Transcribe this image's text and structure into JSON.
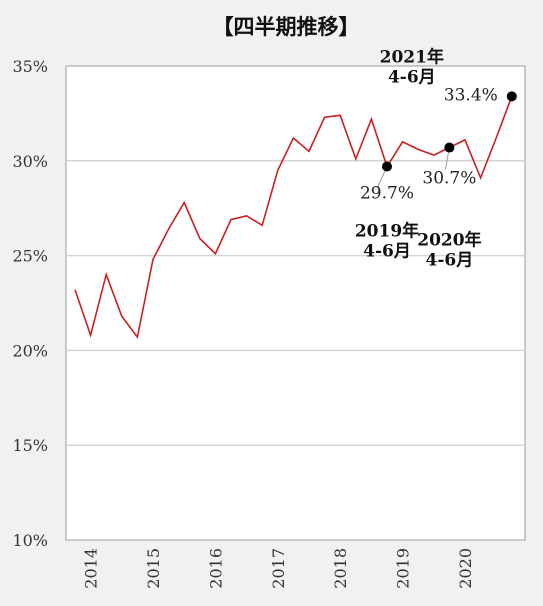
{
  "chart_data": {
    "type": "line",
    "title": "【四半期推移】",
    "xlabel": "",
    "ylabel": "",
    "ylim": [
      10,
      35
    ],
    "yticks": [
      "10%",
      "15%",
      "20%",
      "25%",
      "30%",
      "35%"
    ],
    "ytick_values": [
      10,
      15,
      20,
      25,
      30,
      35
    ],
    "xticks": [
      "2014",
      "2015",
      "2016",
      "2017",
      "2018",
      "2019",
      "2020"
    ],
    "grid": true,
    "line_color": "#cc1f1f",
    "series": [
      {
        "values": [
          23.2,
          20.8,
          24.0,
          21.8,
          20.7,
          24.8,
          26.4,
          27.8,
          25.9,
          25.1,
          26.9,
          27.1,
          26.6,
          29.5,
          31.2,
          30.5,
          32.3,
          32.4,
          30.1,
          32.2,
          29.7,
          31.0,
          30.6,
          30.3,
          30.7,
          31.1,
          29.1,
          31.2,
          33.4
        ]
      }
    ],
    "annotations": [
      {
        "index": 20,
        "value_label": "29.7%",
        "label": "2019年\n4-6月"
      },
      {
        "index": 24,
        "value_label": "30.7%",
        "label": "2020年\n4-6月"
      },
      {
        "index": 28,
        "value_label": "33.4%",
        "label": "2021年\n4-6月"
      }
    ]
  }
}
